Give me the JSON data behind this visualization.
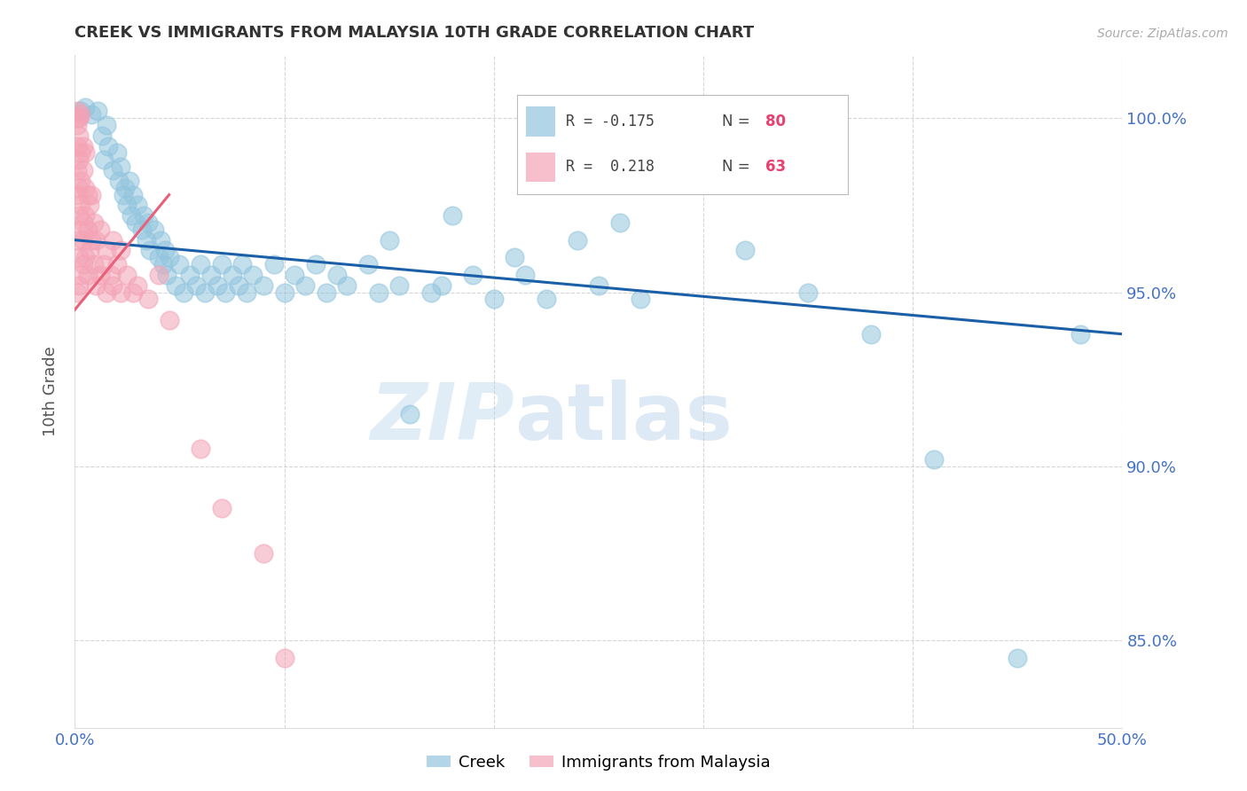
{
  "title": "CREEK VS IMMIGRANTS FROM MALAYSIA 10TH GRADE CORRELATION CHART",
  "source": "Source: ZipAtlas.com",
  "ylabel": "10th Grade",
  "x_min": 0.0,
  "x_max": 0.5,
  "y_min": 82.5,
  "y_max": 101.8,
  "y_ticks": [
    85.0,
    90.0,
    95.0,
    100.0
  ],
  "x_ticks": [
    0.0,
    0.1,
    0.2,
    0.3,
    0.4,
    0.5
  ],
  "x_tick_labels": [
    "0.0%",
    "",
    "",
    "",
    "",
    "50.0%"
  ],
  "y_tick_labels": [
    "85.0%",
    "90.0%",
    "95.0%",
    "100.0%"
  ],
  "blue_color": "#92c5de",
  "pink_color": "#f4a3b5",
  "line_blue": "#1a5fa8",
  "line_pink": "#e8607a",
  "watermark_zip": "ZIP",
  "watermark_atlas": "atlas",
  "creek_points": [
    [
      0.003,
      100.2
    ],
    [
      0.005,
      100.3
    ],
    [
      0.008,
      100.1
    ],
    [
      0.011,
      100.2
    ],
    [
      0.013,
      99.5
    ],
    [
      0.015,
      99.8
    ],
    [
      0.014,
      98.8
    ],
    [
      0.016,
      99.2
    ],
    [
      0.018,
      98.5
    ],
    [
      0.02,
      99.0
    ],
    [
      0.021,
      98.2
    ],
    [
      0.022,
      98.6
    ],
    [
      0.023,
      97.8
    ],
    [
      0.024,
      98.0
    ],
    [
      0.025,
      97.5
    ],
    [
      0.026,
      98.2
    ],
    [
      0.027,
      97.2
    ],
    [
      0.028,
      97.8
    ],
    [
      0.029,
      97.0
    ],
    [
      0.03,
      97.5
    ],
    [
      0.032,
      96.8
    ],
    [
      0.033,
      97.2
    ],
    [
      0.034,
      96.5
    ],
    [
      0.035,
      97.0
    ],
    [
      0.036,
      96.2
    ],
    [
      0.038,
      96.8
    ],
    [
      0.04,
      96.0
    ],
    [
      0.041,
      96.5
    ],
    [
      0.042,
      95.8
    ],
    [
      0.043,
      96.2
    ],
    [
      0.044,
      95.5
    ],
    [
      0.045,
      96.0
    ],
    [
      0.048,
      95.2
    ],
    [
      0.05,
      95.8
    ],
    [
      0.052,
      95.0
    ],
    [
      0.055,
      95.5
    ],
    [
      0.058,
      95.2
    ],
    [
      0.06,
      95.8
    ],
    [
      0.062,
      95.0
    ],
    [
      0.065,
      95.5
    ],
    [
      0.068,
      95.2
    ],
    [
      0.07,
      95.8
    ],
    [
      0.072,
      95.0
    ],
    [
      0.075,
      95.5
    ],
    [
      0.078,
      95.2
    ],
    [
      0.08,
      95.8
    ],
    [
      0.082,
      95.0
    ],
    [
      0.085,
      95.5
    ],
    [
      0.09,
      95.2
    ],
    [
      0.095,
      95.8
    ],
    [
      0.1,
      95.0
    ],
    [
      0.105,
      95.5
    ],
    [
      0.11,
      95.2
    ],
    [
      0.115,
      95.8
    ],
    [
      0.12,
      95.0
    ],
    [
      0.125,
      95.5
    ],
    [
      0.13,
      95.2
    ],
    [
      0.14,
      95.8
    ],
    [
      0.145,
      95.0
    ],
    [
      0.15,
      96.5
    ],
    [
      0.155,
      95.2
    ],
    [
      0.16,
      91.5
    ],
    [
      0.17,
      95.0
    ],
    [
      0.175,
      95.2
    ],
    [
      0.18,
      97.2
    ],
    [
      0.19,
      95.5
    ],
    [
      0.2,
      94.8
    ],
    [
      0.21,
      96.0
    ],
    [
      0.215,
      95.5
    ],
    [
      0.225,
      94.8
    ],
    [
      0.24,
      96.5
    ],
    [
      0.25,
      95.2
    ],
    [
      0.26,
      97.0
    ],
    [
      0.27,
      94.8
    ],
    [
      0.32,
      96.2
    ],
    [
      0.35,
      95.0
    ],
    [
      0.38,
      93.8
    ],
    [
      0.41,
      90.2
    ],
    [
      0.45,
      84.5
    ],
    [
      0.48,
      93.8
    ]
  ],
  "malay_points": [
    [
      0.001,
      95.0
    ],
    [
      0.001,
      96.5
    ],
    [
      0.001,
      97.8
    ],
    [
      0.001,
      98.5
    ],
    [
      0.001,
      99.2
    ],
    [
      0.001,
      99.8
    ],
    [
      0.001,
      100.0
    ],
    [
      0.001,
      100.2
    ],
    [
      0.002,
      95.2
    ],
    [
      0.002,
      96.0
    ],
    [
      0.002,
      97.2
    ],
    [
      0.002,
      98.0
    ],
    [
      0.002,
      98.8
    ],
    [
      0.002,
      99.5
    ],
    [
      0.002,
      100.0
    ],
    [
      0.003,
      95.5
    ],
    [
      0.003,
      96.8
    ],
    [
      0.003,
      97.5
    ],
    [
      0.003,
      98.2
    ],
    [
      0.003,
      99.0
    ],
    [
      0.003,
      100.1
    ],
    [
      0.004,
      95.8
    ],
    [
      0.004,
      96.5
    ],
    [
      0.004,
      97.0
    ],
    [
      0.004,
      98.5
    ],
    [
      0.004,
      99.2
    ],
    [
      0.005,
      96.0
    ],
    [
      0.005,
      97.2
    ],
    [
      0.005,
      98.0
    ],
    [
      0.005,
      99.0
    ],
    [
      0.006,
      95.5
    ],
    [
      0.006,
      96.8
    ],
    [
      0.006,
      97.8
    ],
    [
      0.007,
      96.2
    ],
    [
      0.007,
      97.5
    ],
    [
      0.008,
      96.5
    ],
    [
      0.008,
      97.8
    ],
    [
      0.009,
      95.8
    ],
    [
      0.009,
      97.0
    ],
    [
      0.01,
      95.2
    ],
    [
      0.01,
      96.5
    ],
    [
      0.012,
      95.5
    ],
    [
      0.012,
      96.8
    ],
    [
      0.014,
      95.8
    ],
    [
      0.015,
      95.0
    ],
    [
      0.015,
      96.2
    ],
    [
      0.017,
      95.5
    ],
    [
      0.018,
      95.2
    ],
    [
      0.018,
      96.5
    ],
    [
      0.02,
      95.8
    ],
    [
      0.022,
      95.0
    ],
    [
      0.022,
      96.2
    ],
    [
      0.025,
      95.5
    ],
    [
      0.028,
      95.0
    ],
    [
      0.03,
      95.2
    ],
    [
      0.035,
      94.8
    ],
    [
      0.04,
      95.5
    ],
    [
      0.045,
      94.2
    ],
    [
      0.06,
      90.5
    ],
    [
      0.07,
      88.8
    ],
    [
      0.09,
      87.5
    ],
    [
      0.1,
      84.5
    ]
  ],
  "creek_trendline_x": [
    0.0,
    0.5
  ],
  "creek_trendline_y": [
    96.5,
    93.8
  ],
  "malay_trendline_x": [
    0.0,
    0.045
  ],
  "malay_trendline_y": [
    94.5,
    97.8
  ]
}
